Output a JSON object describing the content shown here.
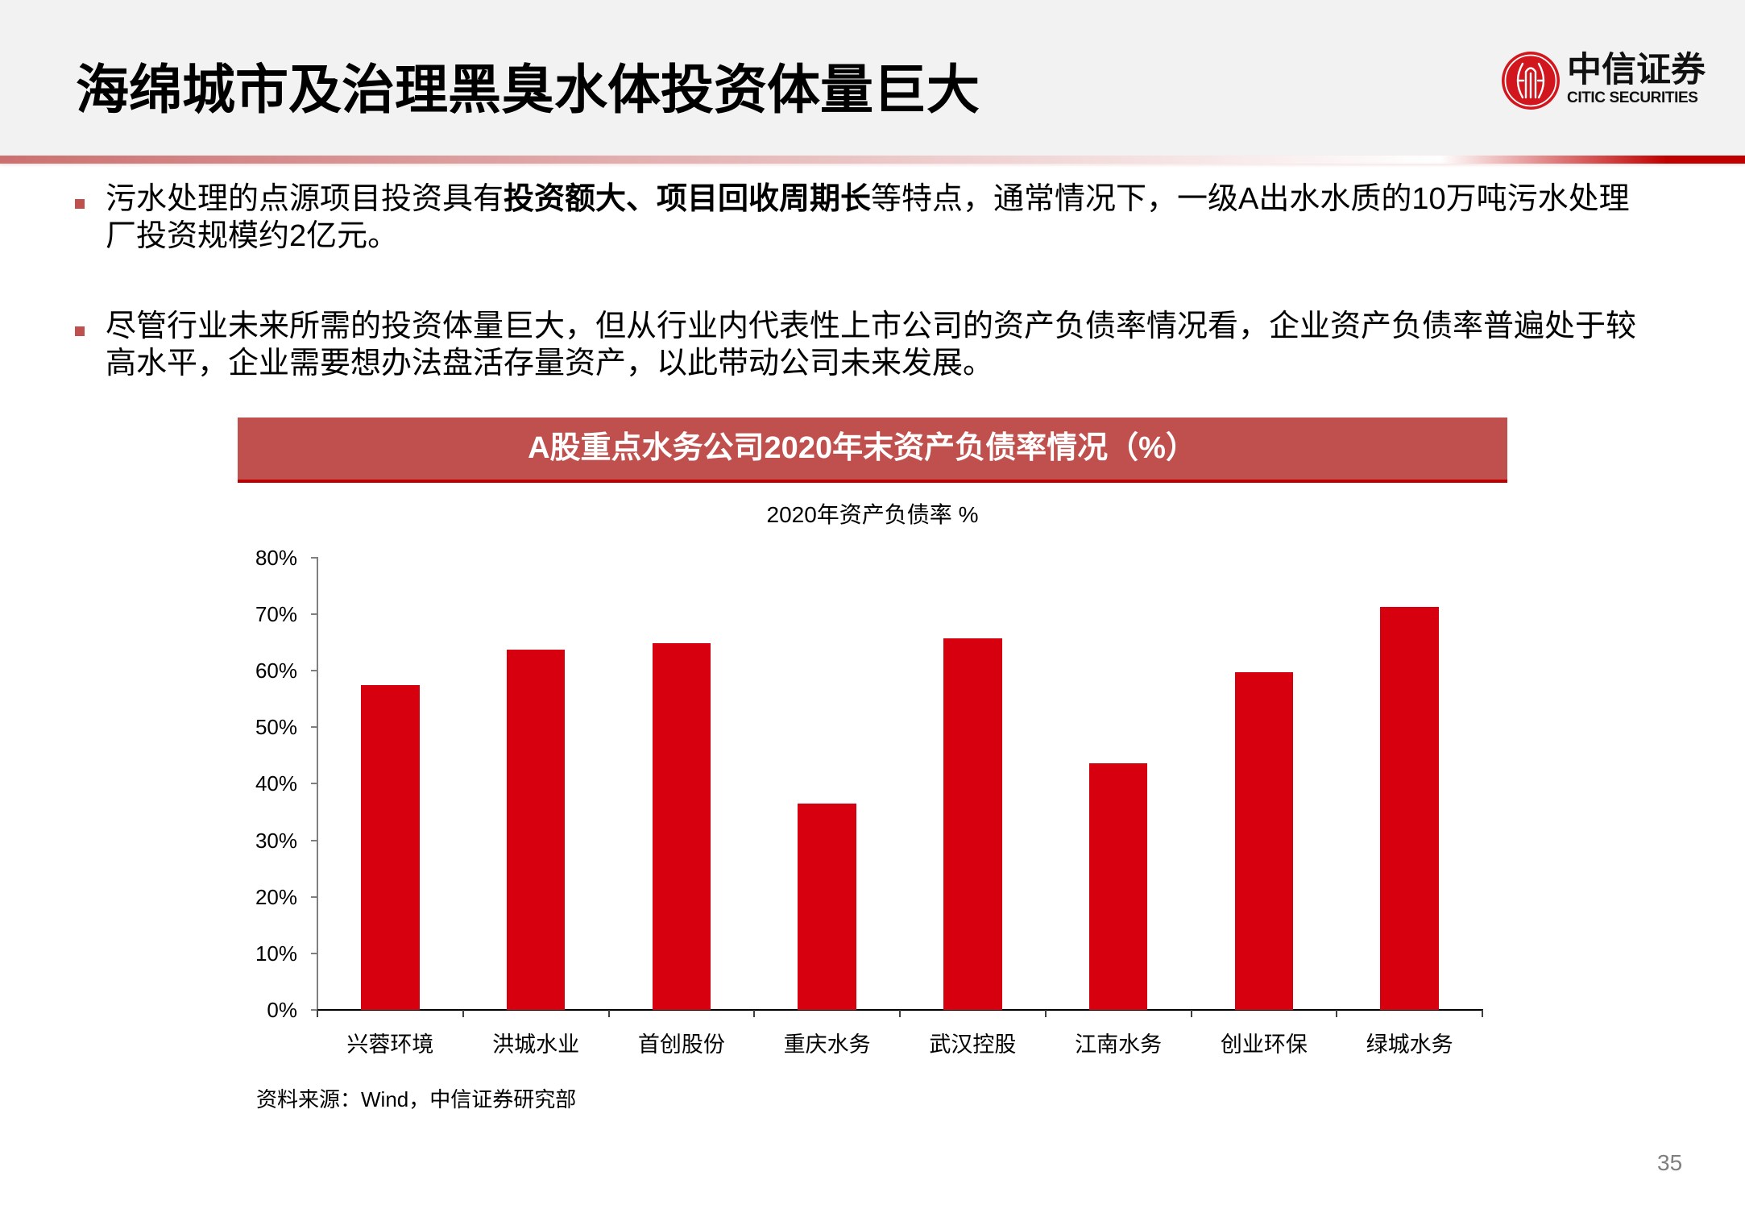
{
  "header": {
    "title": "海绵城市及治理黑臭水体投资体量巨大"
  },
  "logo": {
    "name_cn": "中信证券",
    "name_en": "CITIC SECURITIES"
  },
  "bullets": [
    {
      "text_before_bold": "污水处理的点源项目投资具有",
      "bold_text": "投资额大、项目回收周期长",
      "text_after_bold": "等特点，通常情况下，一级A出水水质的10万吨污水处理",
      "continuation": "厂投资规模约2亿元。"
    },
    {
      "line1": "尽管行业未来所需的投资体量巨大，但从行业内代表性上市公司的资产负债率情况看，企业资产负债率普遍处于较",
      "continuation": "高水平，企业需要想办法盘活存量资产，以此带动公司未来发展。"
    }
  ],
  "chart_data": {
    "type": "bar",
    "title": "A股重点水务公司2020年末资产负债率情况（%）",
    "subtitle": "2020年资产负债率 %",
    "categories": [
      "兴蓉环境",
      "洪城水业",
      "首创股份",
      "重庆水务",
      "武汉控股",
      "江南水务",
      "创业环保",
      "绿城水务"
    ],
    "series": [
      {
        "name": "2020年资产负债率",
        "values": [
          57.4,
          63.7,
          64.8,
          36.5,
          65.7,
          43.6,
          59.7,
          71.3
        ]
      }
    ],
    "values": [
      57.4,
      63.7,
      64.8,
      36.5,
      65.7,
      43.6,
      59.7,
      71.3
    ],
    "xlabel": "",
    "ylabel": "",
    "ylim": [
      0,
      80
    ],
    "ytick_values": [
      0,
      10,
      20,
      30,
      40,
      50,
      60,
      70,
      80
    ],
    "ytick_labels": [
      "0%",
      "10%",
      "20%",
      "30%",
      "40%",
      "50%",
      "60%",
      "70%",
      "80%"
    ],
    "grid": false,
    "legend": "none",
    "source": "资料来源：Wind，中信证券研究部"
  },
  "page_number": "35",
  "colors": {
    "header_bg": "#F2F2F2",
    "accent": "#C0504D",
    "accent_dark": "#C00000",
    "bar": "#D6000F",
    "logo_red": "#D2161E",
    "page_number": "#7F7F7F"
  }
}
